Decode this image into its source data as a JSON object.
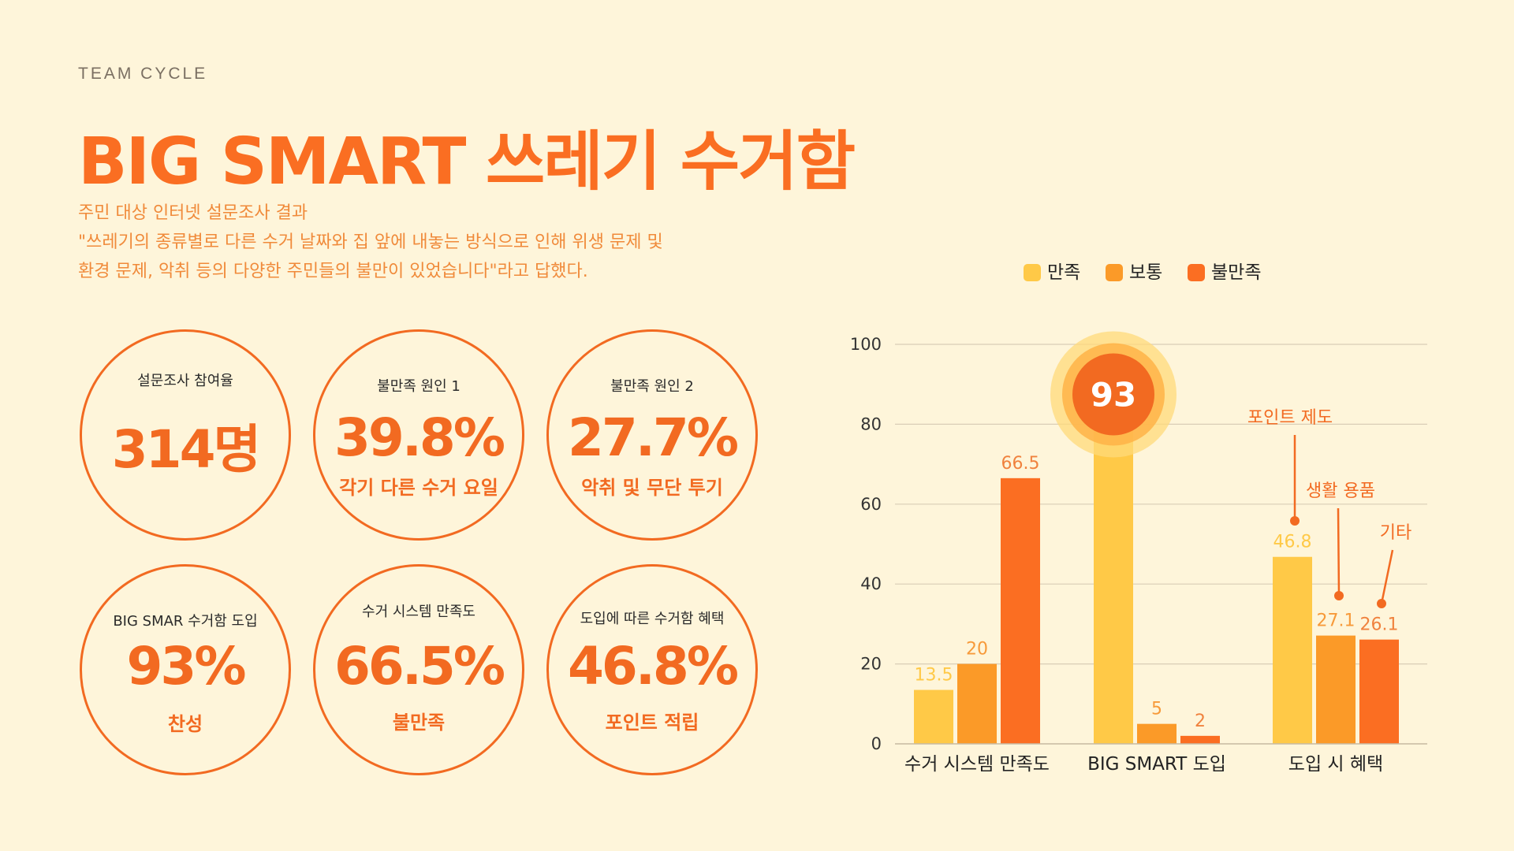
{
  "header": {
    "brand": "TEAM CYCLE",
    "title": "BIG SMART 쓰레기 수거함",
    "subtitle_lines": [
      "주민 대상 인터넷 설문조사 결과",
      "\"쓰레기의 종류별로 다른 수거 날짜와 집 앞에 내놓는 방식으로 인해 위생 문제 및",
      "환경 문제, 악취 등의 다양한 주민들의 불만이 있었습니다\"라고 답했다."
    ]
  },
  "stats": [
    {
      "label": "설문조사 참여율",
      "value": "314명",
      "sub": ""
    },
    {
      "label": "불만족 원인 1",
      "value": "39.8%",
      "sub": "각기 다른 수거 요일"
    },
    {
      "label": "불만족 원인 2",
      "value": "27.7%",
      "sub": "악취 및 무단 투기"
    },
    {
      "label": "BIG SMAR 수거함 도입",
      "value": "93%",
      "sub": "찬성"
    },
    {
      "label": "수거 시스템 만족도",
      "value": "66.5%",
      "sub": "불만족"
    },
    {
      "label": "도입에 따른 수거함 혜택",
      "value": "46.8%",
      "sub": "포인트 적립"
    }
  ],
  "colors": {
    "accent": "#F26A21",
    "background": "#FEF5DA",
    "series": [
      "#FFC947",
      "#FB9A28",
      "#FB6E22"
    ]
  },
  "chart_data": {
    "type": "bar",
    "categories": [
      "수거 시스템 만족도",
      "BIG SMART 도입",
      "도입 시 혜택"
    ],
    "series": [
      {
        "name": "만족",
        "values": [
          13.5,
          93,
          46.8
        ]
      },
      {
        "name": "보통",
        "values": [
          20,
          5,
          27.1
        ]
      },
      {
        "name": "불만족",
        "values": [
          66.5,
          2,
          26.1
        ]
      }
    ],
    "data_labels": [
      [
        "13.5",
        "93",
        "46.8"
      ],
      [
        "20",
        "5",
        "27.1"
      ],
      [
        "66.5",
        "2",
        "26.1"
      ]
    ],
    "annotations": [
      "포인트 제도",
      "생활 용품",
      "기타"
    ],
    "yticks": [
      "0",
      "20",
      "40",
      "60",
      "80",
      "100"
    ],
    "ylim": [
      0,
      100
    ],
    "grid": true,
    "legend_position": "top"
  }
}
